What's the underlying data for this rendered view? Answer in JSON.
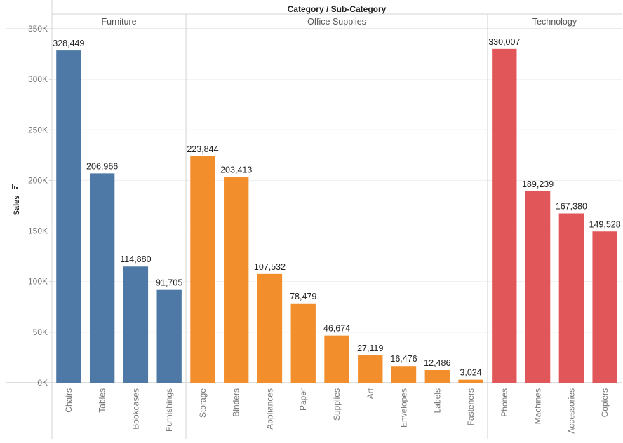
{
  "chart_data": {
    "type": "bar",
    "title": "",
    "column_header": "Category / Sub-Category",
    "ylabel": "Sales",
    "ylim": [
      0,
      350000
    ],
    "y_ticks": [
      {
        "value": 0,
        "label": "0K"
      },
      {
        "value": 50000,
        "label": "50K"
      },
      {
        "value": 100000,
        "label": "100K"
      },
      {
        "value": 150000,
        "label": "150K"
      },
      {
        "value": 200000,
        "label": "200K"
      },
      {
        "value": 250000,
        "label": "250K"
      },
      {
        "value": 300000,
        "label": "300K"
      },
      {
        "value": 350000,
        "label": "350K"
      }
    ],
    "groups": [
      {
        "name": "Furniture",
        "color": "#4e79a7",
        "bars": [
          {
            "category": "Chairs",
            "value": 328449,
            "label": "328,449"
          },
          {
            "category": "Tables",
            "value": 206966,
            "label": "206,966"
          },
          {
            "category": "Bookcases",
            "value": 114880,
            "label": "114,880"
          },
          {
            "category": "Furnishings",
            "value": 91705,
            "label": "91,705"
          }
        ]
      },
      {
        "name": "Office Supplies",
        "color": "#f28e2b",
        "bars": [
          {
            "category": "Storage",
            "value": 223844,
            "label": "223,844"
          },
          {
            "category": "Binders",
            "value": 203413,
            "label": "203,413"
          },
          {
            "category": "Appliances",
            "value": 107532,
            "label": "107,532"
          },
          {
            "category": "Paper",
            "value": 78479,
            "label": "78,479"
          },
          {
            "category": "Supplies",
            "value": 46674,
            "label": "46,674"
          },
          {
            "category": "Art",
            "value": 27119,
            "label": "27,119"
          },
          {
            "category": "Envelopes",
            "value": 16476,
            "label": "16,476"
          },
          {
            "category": "Labels",
            "value": 12486,
            "label": "12,486"
          },
          {
            "category": "Fasteners",
            "value": 3024,
            "label": "3,024"
          }
        ]
      },
      {
        "name": "Technology",
        "color": "#e15759",
        "bars": [
          {
            "category": "Phones",
            "value": 330007,
            "label": "330,007"
          },
          {
            "category": "Machines",
            "value": 189239,
            "label": "189,239"
          },
          {
            "category": "Accessories",
            "value": 167380,
            "label": "167,380"
          },
          {
            "category": "Copiers",
            "value": 149528,
            "label": "149,528"
          }
        ]
      }
    ],
    "grid": true,
    "legend": "none"
  }
}
